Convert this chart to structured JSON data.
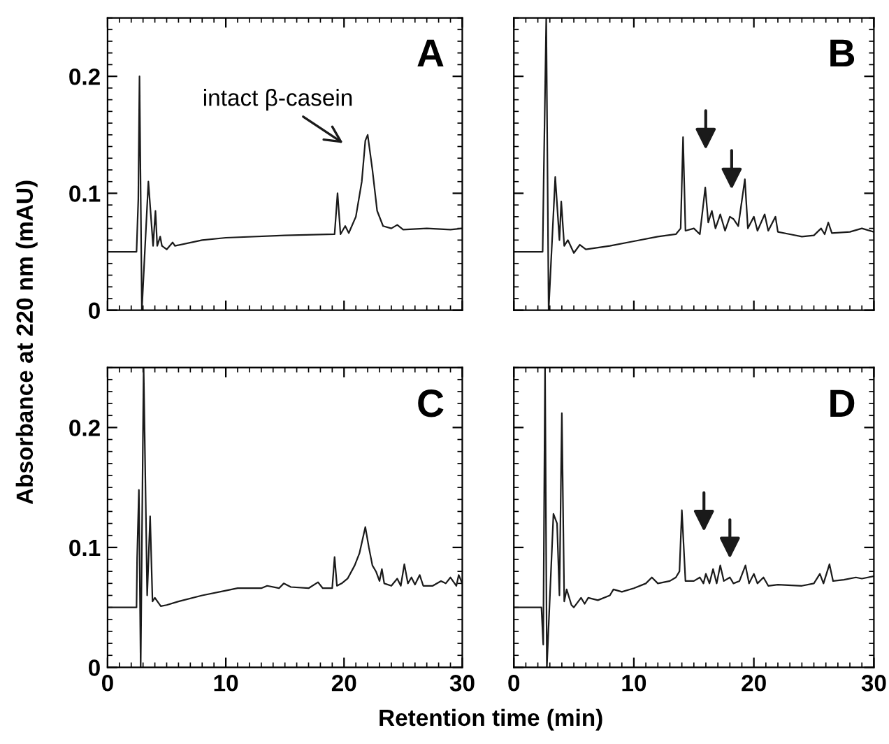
{
  "chart_data": [
    {
      "type": "line",
      "title": "A",
      "ylabel": "Absorbance at 220 nm (mAU)",
      "xlim": [
        0,
        30
      ],
      "ylim": [
        0,
        0.25
      ],
      "xticks": [
        0,
        10,
        20,
        30
      ],
      "yticks": [
        0,
        0.1,
        0.2
      ],
      "tick_labels": "y",
      "grid": false,
      "legend": false,
      "annotations": [
        "intact β-casein"
      ],
      "series": [
        {
          "color": "#1a1a1a",
          "x": [
            0,
            2.45,
            2.6,
            2.7,
            2.9,
            3.45,
            3.85,
            4.05,
            4.2,
            4.45,
            4.6,
            5.0,
            5.5,
            5.7,
            8,
            10,
            15,
            19.2,
            19.45,
            19.7,
            20.1,
            20.4,
            21,
            21.5,
            21.8,
            22.0,
            22.4,
            22.8,
            23.3,
            24,
            24.5,
            25,
            27,
            29,
            30
          ],
          "values": [
            0.05,
            0.05,
            0.095,
            0.2,
            0.0,
            0.11,
            0.055,
            0.085,
            0.055,
            0.063,
            0.055,
            0.052,
            0.058,
            0.055,
            0.06,
            0.062,
            0.064,
            0.065,
            0.1,
            0.065,
            0.072,
            0.066,
            0.08,
            0.11,
            0.145,
            0.15,
            0.12,
            0.085,
            0.072,
            0.07,
            0.073,
            0.069,
            0.07,
            0.069,
            0.07
          ]
        }
      ]
    },
    {
      "type": "line",
      "title": "B",
      "xlim": [
        0,
        30
      ],
      "ylim": [
        0,
        0.25
      ],
      "xticks": [
        0,
        10,
        20,
        30
      ],
      "yticks": [
        0,
        0.1,
        0.2
      ],
      "tick_labels": false,
      "grid": false,
      "legend": false,
      "series": [
        {
          "color": "#1a1a1a",
          "x": [
            0,
            2.4,
            2.5,
            2.7,
            2.9,
            3.45,
            3.8,
            3.95,
            4.2,
            4.5,
            5.0,
            5.5,
            6,
            8,
            10,
            12,
            13.5,
            13.9,
            14.1,
            14.3,
            15,
            15.5,
            15.95,
            16.2,
            16.5,
            16.8,
            17.2,
            17.6,
            18.0,
            18.3,
            18.7,
            19.25,
            19.5,
            20,
            20.3,
            20.9,
            21.2,
            21.8,
            22,
            23,
            24,
            25,
            25.6,
            25.9,
            26.2,
            26.5,
            28,
            29,
            30
          ],
          "values": [
            0.05,
            0.05,
            0.121,
            0.25,
            0.0,
            0.114,
            0.06,
            0.093,
            0.055,
            0.06,
            0.049,
            0.056,
            0.052,
            0.055,
            0.059,
            0.063,
            0.065,
            0.07,
            0.148,
            0.068,
            0.07,
            0.065,
            0.105,
            0.075,
            0.085,
            0.07,
            0.082,
            0.068,
            0.08,
            0.078,
            0.072,
            0.112,
            0.07,
            0.08,
            0.068,
            0.082,
            0.068,
            0.08,
            0.067,
            0.065,
            0.063,
            0.064,
            0.07,
            0.065,
            0.075,
            0.066,
            0.067,
            0.07,
            0.067
          ]
        }
      ]
    },
    {
      "type": "line",
      "title": "C",
      "xlabel": "Retention time (min)",
      "xlim": [
        0,
        30
      ],
      "ylim": [
        0,
        0.25
      ],
      "xticks": [
        0,
        10,
        20,
        30
      ],
      "yticks": [
        0,
        0.1,
        0.2
      ],
      "grid": false,
      "legend": false,
      "series": [
        {
          "color": "#1a1a1a",
          "x": [
            0,
            2.45,
            2.5,
            2.65,
            2.8,
            3.05,
            3.35,
            3.6,
            3.8,
            4.0,
            4.5,
            5,
            6,
            8,
            10,
            11,
            13,
            13.5,
            14.5,
            14.9,
            15.5,
            17,
            17.8,
            18.2,
            19,
            19.2,
            19.4,
            19.8,
            20.3,
            20.9,
            21.3,
            21.8,
            22.1,
            22.4,
            22.7,
            23.0,
            23.2,
            23.4,
            24,
            24.5,
            24.8,
            25.1,
            25.4,
            25.7,
            26,
            26.4,
            26.7,
            27.5,
            28.2,
            28.6,
            29,
            29.5,
            29.7,
            30
          ],
          "values": [
            0.05,
            0.05,
            0.091,
            0.148,
            0.0,
            0.25,
            0.06,
            0.126,
            0.055,
            0.058,
            0.051,
            0.052,
            0.055,
            0.06,
            0.064,
            0.066,
            0.066,
            0.068,
            0.066,
            0.07,
            0.067,
            0.066,
            0.071,
            0.066,
            0.066,
            0.092,
            0.068,
            0.07,
            0.074,
            0.085,
            0.095,
            0.117,
            0.1,
            0.085,
            0.08,
            0.072,
            0.082,
            0.07,
            0.068,
            0.074,
            0.068,
            0.086,
            0.07,
            0.075,
            0.069,
            0.077,
            0.068,
            0.068,
            0.072,
            0.07,
            0.075,
            0.068,
            0.077,
            0.07
          ]
        }
      ]
    },
    {
      "type": "line",
      "title": "D",
      "xlim": [
        0,
        30
      ],
      "ylim": [
        0,
        0.25
      ],
      "xticks": [
        0,
        10,
        20,
        30
      ],
      "yticks": [
        0,
        0.1,
        0.2
      ],
      "tick_labels": "x",
      "grid": false,
      "legend": false,
      "series": [
        {
          "color": "#1a1a1a",
          "x": [
            0,
            2.3,
            2.45,
            2.6,
            2.75,
            3.3,
            3.6,
            3.8,
            4.0,
            4.2,
            4.4,
            4.8,
            5,
            5.6,
            5.9,
            6.2,
            7,
            8,
            8.3,
            9,
            10,
            11,
            11.5,
            12,
            13,
            13.5,
            13.8,
            14.0,
            14.3,
            15,
            15.5,
            15.8,
            16.0,
            16.3,
            16.6,
            16.9,
            17.2,
            17.5,
            18.0,
            18.3,
            18.8,
            19.3,
            19.6,
            20,
            20.3,
            20.8,
            21.2,
            22,
            24,
            25,
            25.5,
            25.8,
            26.3,
            26.6,
            27.5,
            28.5,
            29,
            30
          ],
          "values": [
            0.05,
            0.05,
            0.019,
            0.25,
            0.0,
            0.128,
            0.12,
            0.06,
            0.212,
            0.055,
            0.065,
            0.052,
            0.05,
            0.058,
            0.053,
            0.058,
            0.056,
            0.06,
            0.065,
            0.063,
            0.066,
            0.07,
            0.075,
            0.07,
            0.072,
            0.075,
            0.08,
            0.131,
            0.072,
            0.072,
            0.075,
            0.07,
            0.078,
            0.07,
            0.082,
            0.07,
            0.085,
            0.072,
            0.075,
            0.07,
            0.072,
            0.085,
            0.07,
            0.078,
            0.07,
            0.075,
            0.068,
            0.069,
            0.068,
            0.07,
            0.078,
            0.07,
            0.086,
            0.072,
            0.073,
            0.075,
            0.074,
            0.076
          ]
        }
      ]
    }
  ]
}
